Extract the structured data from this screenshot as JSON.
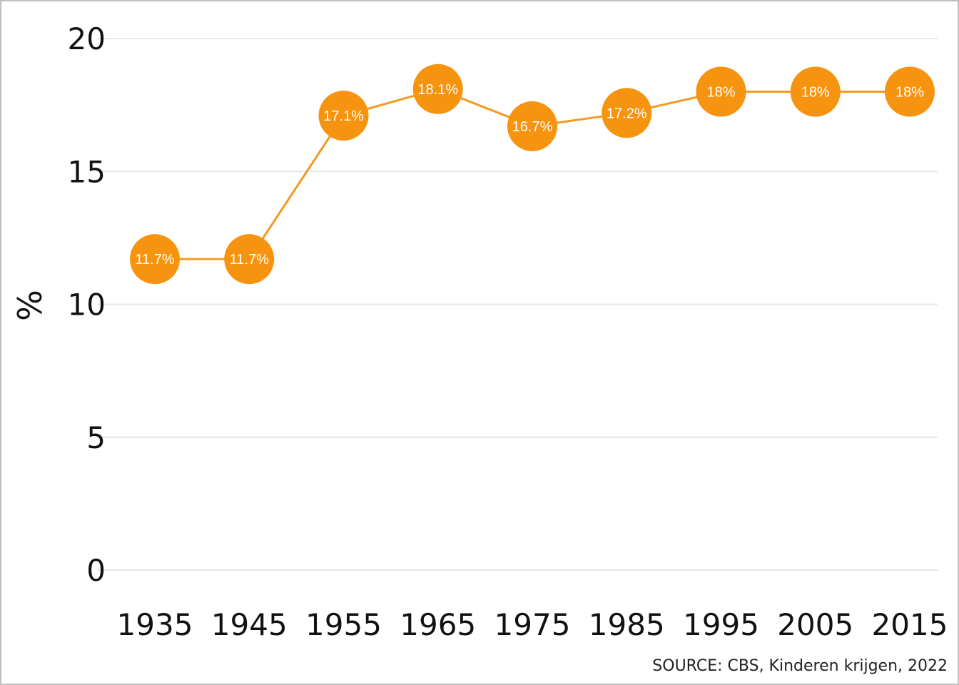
{
  "chart_data": {
    "type": "line",
    "title": "",
    "xlabel": "",
    "ylabel": "%",
    "x": [
      "1935",
      "1945",
      "1955",
      "1965",
      "1975",
      "1985",
      "1995",
      "2005",
      "2015"
    ],
    "series": [
      {
        "values": [
          11.7,
          11.7,
          17.1,
          18.1,
          16.7,
          17.2,
          18,
          18,
          18
        ],
        "labels": [
          "11.7%",
          "11.7%",
          "17.1%",
          "18.1%",
          "16.7%",
          "17.2%",
          "18%",
          "18%",
          "18%"
        ]
      }
    ],
    "ylim": [
      0,
      20
    ],
    "yticks": [
      0,
      5,
      10,
      15,
      20
    ],
    "grid": "horizontal",
    "legend": "none",
    "source": "SOURCE: CBS, Kinderen krijgen, 2022",
    "colors": {
      "series": "#F7940F",
      "line": "#F39A1E",
      "grid": "#e6e6e6",
      "label_text": "#ffffff"
    }
  }
}
